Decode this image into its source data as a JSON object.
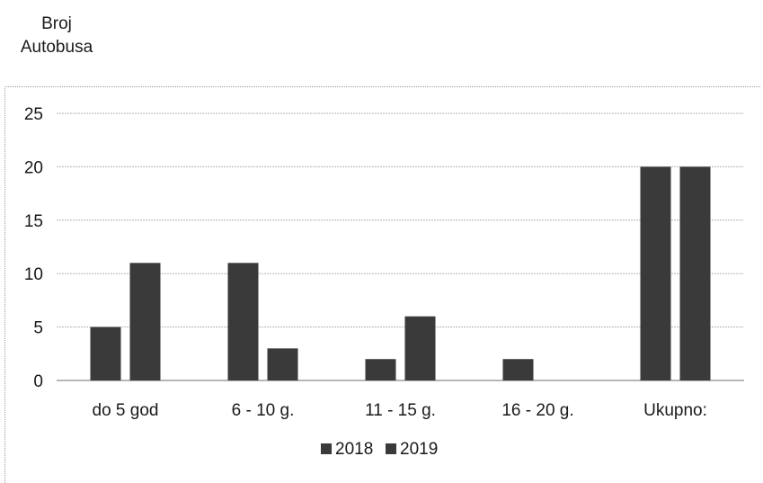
{
  "chart_data": {
    "type": "bar",
    "title": "",
    "ylabel_lines": [
      "Broj",
      "Autobusa"
    ],
    "xlabel": "",
    "categories": [
      "do 5 god",
      "6 - 10 g.",
      "11 - 15 g.",
      "16 - 20 g.",
      "Ukupno:"
    ],
    "series": [
      {
        "name": "2018",
        "values": [
          5,
          11,
          2,
          2,
          20
        ]
      },
      {
        "name": "2019",
        "values": [
          11,
          3,
          6,
          0,
          20
        ]
      }
    ],
    "yticks": [
      0,
      5,
      10,
      15,
      20,
      25
    ],
    "ylim": [
      0,
      25
    ],
    "grid": true,
    "legend_position": "bottom",
    "colors": {
      "series_2018": "#3a3a3a",
      "series_2019": "#3a3a3a",
      "grid": "#b5b5b5"
    }
  }
}
